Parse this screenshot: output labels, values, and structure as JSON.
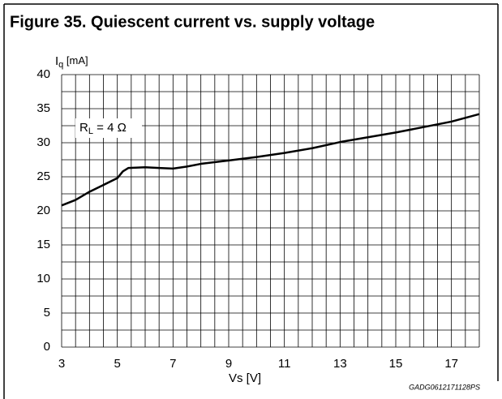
{
  "chart_data": {
    "type": "line",
    "title": "Figure 35. Quiescent current vs. supply voltage",
    "y_label": {
      "main": "I",
      "sub": "q",
      "unit": " [mA]"
    },
    "x_label": "Vs [V]",
    "annotation": {
      "main": "R",
      "sub": "L",
      "rest": " = 4 Ω"
    },
    "footnote": "GADG0612171128PS",
    "xlim": [
      3,
      18
    ],
    "ylim": [
      0,
      40
    ],
    "xticks": [
      3,
      5,
      7,
      9,
      11,
      13,
      15,
      17
    ],
    "yticks": [
      0,
      5,
      10,
      15,
      20,
      25,
      30,
      35,
      40
    ],
    "x_grid": [
      3,
      3.5,
      4,
      4.5,
      5,
      5.5,
      6,
      6.5,
      7,
      7.5,
      8,
      8.5,
      9,
      9.5,
      10,
      10.5,
      11,
      11.5,
      12,
      12.5,
      13,
      13.5,
      14,
      14.5,
      15,
      15.5,
      16,
      16.5,
      17,
      17.5,
      18
    ],
    "y_grid": [
      0,
      2.5,
      5,
      7.5,
      10,
      12.5,
      15,
      17.5,
      20,
      22.5,
      25,
      27.5,
      30,
      32.5,
      35,
      37.5,
      40
    ],
    "grid": true,
    "series": [
      {
        "name": "Iq",
        "color": "#000000",
        "x": [
          3,
          3.5,
          4,
          4.5,
          5,
          5.2,
          5.4,
          6,
          6.5,
          7,
          7.5,
          8,
          9,
          10,
          11,
          12,
          13,
          14,
          15,
          16,
          17,
          18
        ],
        "values": [
          20.8,
          21.6,
          22.8,
          23.8,
          24.8,
          25.8,
          26.3,
          26.4,
          26.3,
          26.2,
          26.5,
          26.9,
          27.4,
          27.9,
          28.5,
          29.2,
          30.1,
          30.8,
          31.5,
          32.3,
          33.1,
          34.2
        ]
      }
    ]
  }
}
